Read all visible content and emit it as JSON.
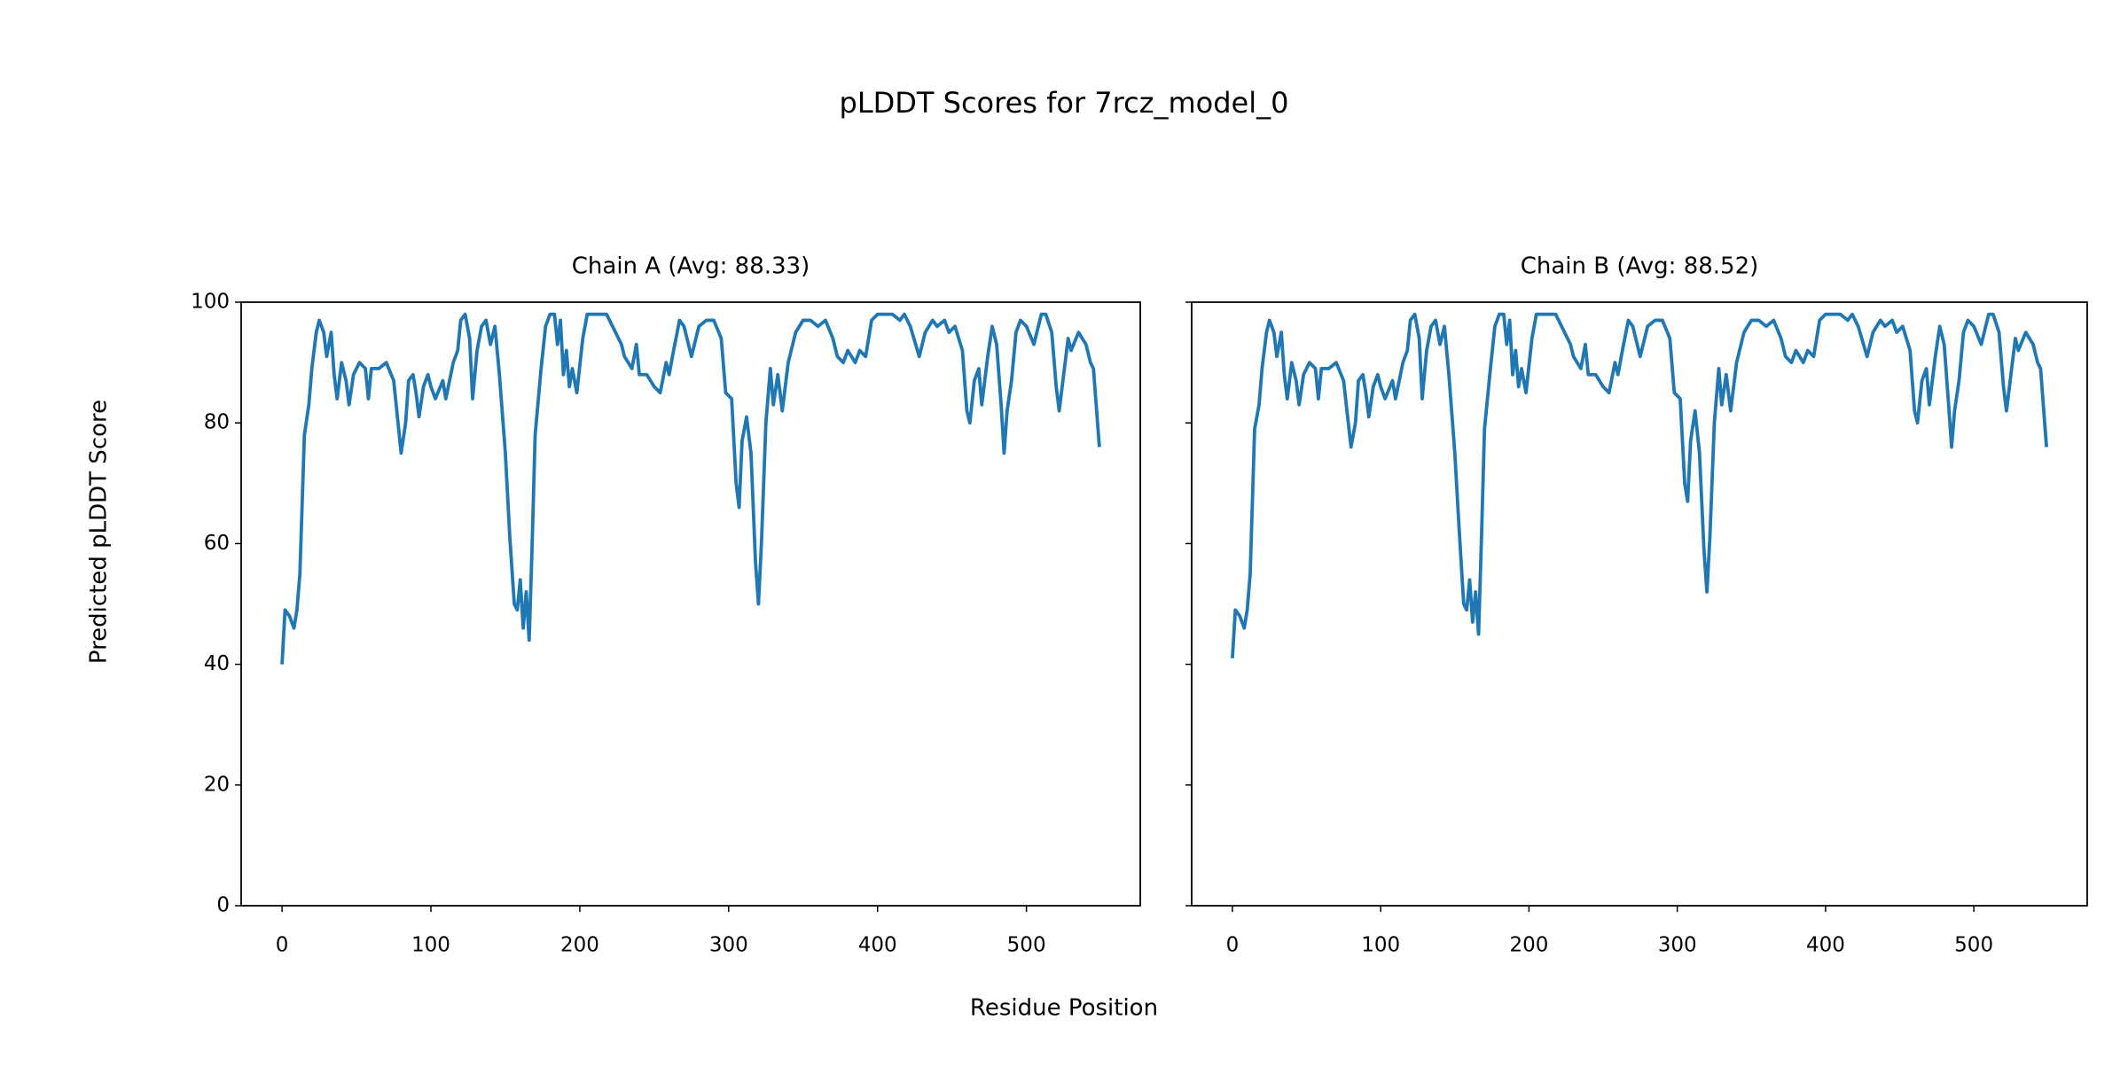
{
  "title": "pLDDT Scores for 7rcz_model_0",
  "x_label": "Residue Position",
  "y_label": "Predicted pLDDT Score",
  "chart_data": [
    {
      "type": "line",
      "title": "Chain A (Avg: 88.33)",
      "color": "#1f77b4",
      "xlim": [
        -27.45,
        576.45
      ],
      "ylim": [
        0,
        100
      ],
      "xticks": [
        0,
        100,
        200,
        300,
        400,
        500
      ],
      "yticks": [
        0,
        20,
        40,
        60,
        80,
        100
      ],
      "x": [
        0,
        2,
        5,
        8,
        10,
        12,
        15,
        18,
        20,
        23,
        25,
        28,
        30,
        33,
        35,
        37,
        40,
        43,
        45,
        48,
        52,
        56,
        58,
        60,
        65,
        70,
        75,
        80,
        83,
        85,
        88,
        90,
        92,
        95,
        98,
        100,
        103,
        108,
        110,
        115,
        118,
        120,
        123,
        126,
        128,
        131,
        134,
        137,
        140,
        143,
        146,
        150,
        153,
        156,
        158,
        160,
        162,
        164,
        166,
        168,
        170,
        174,
        177,
        180,
        183,
        185,
        187,
        189,
        191,
        193,
        195,
        198,
        202,
        205,
        208,
        212,
        218,
        222,
        226,
        228,
        230,
        235,
        238,
        240,
        245,
        250,
        254,
        258,
        260,
        263,
        267,
        270,
        275,
        280,
        285,
        290,
        295,
        298,
        302,
        305,
        307,
        309,
        312,
        315,
        318,
        320,
        322,
        325,
        328,
        330,
        333,
        336,
        340,
        345,
        350,
        355,
        360,
        365,
        370,
        373,
        377,
        380,
        385,
        388,
        392,
        396,
        400,
        405,
        410,
        415,
        418,
        422,
        428,
        432,
        437,
        440,
        445,
        448,
        452,
        457,
        460,
        462,
        465,
        468,
        470,
        474,
        477,
        480,
        483,
        485,
        487,
        490,
        493,
        496,
        500,
        505,
        510,
        513,
        517,
        520,
        522,
        525,
        528,
        530,
        535,
        540,
        543,
        545,
        549
      ],
      "values": [
        40,
        49,
        48,
        46,
        49,
        55,
        78,
        83,
        89,
        95,
        97,
        95,
        91,
        95,
        88,
        84,
        90,
        87,
        83,
        88,
        90,
        89,
        84,
        89,
        89,
        90,
        87,
        75,
        80,
        87,
        88,
        85,
        81,
        86,
        88,
        86,
        84,
        87,
        84,
        90,
        92,
        97,
        98,
        94,
        84,
        92,
        96,
        97,
        93,
        96,
        88,
        75,
        61,
        50,
        49,
        54,
        46,
        52,
        44,
        60,
        78,
        89,
        96,
        98,
        98,
        93,
        97,
        88,
        92,
        86,
        89,
        85,
        94,
        98,
        98,
        98,
        98,
        96,
        94,
        93,
        91,
        89,
        93,
        88,
        88,
        86,
        85,
        90,
        88,
        92,
        97,
        96,
        91,
        96,
        97,
        97,
        94,
        85,
        84,
        70,
        66,
        77,
        81,
        75,
        57,
        50,
        60,
        80,
        89,
        83,
        88,
        82,
        90,
        95,
        97,
        97,
        96,
        97,
        94,
        91,
        90,
        92,
        90,
        92,
        91,
        97,
        98,
        98,
        98,
        97,
        98,
        96,
        91,
        95,
        97,
        96,
        97,
        95,
        96,
        92,
        82,
        80,
        87,
        89,
        83,
        91,
        96,
        93,
        83,
        75,
        82,
        87,
        95,
        97,
        96,
        93,
        98,
        98,
        95,
        86,
        82,
        88,
        94,
        92,
        95,
        93,
        90,
        89,
        76
      ]
    },
    {
      "type": "line",
      "title": "Chain B (Avg: 88.52)",
      "color": "#1f77b4",
      "xlim": [
        -27.45,
        576.45
      ],
      "ylim": [
        0,
        100
      ],
      "xticks": [
        0,
        100,
        200,
        300,
        400,
        500
      ],
      "yticks": [
        0,
        20,
        40,
        60,
        80,
        100
      ],
      "x": [
        0,
        2,
        5,
        8,
        10,
        12,
        15,
        18,
        20,
        23,
        25,
        28,
        30,
        33,
        35,
        37,
        40,
        43,
        45,
        48,
        52,
        56,
        58,
        60,
        65,
        70,
        75,
        80,
        83,
        85,
        88,
        90,
        92,
        95,
        98,
        100,
        103,
        108,
        110,
        115,
        118,
        120,
        123,
        126,
        128,
        131,
        134,
        137,
        140,
        143,
        146,
        150,
        153,
        156,
        158,
        160,
        162,
        164,
        166,
        168,
        170,
        174,
        177,
        180,
        183,
        185,
        187,
        189,
        191,
        193,
        195,
        198,
        202,
        205,
        208,
        212,
        218,
        222,
        226,
        228,
        230,
        235,
        238,
        240,
        245,
        250,
        254,
        258,
        260,
        263,
        267,
        270,
        275,
        280,
        285,
        290,
        295,
        298,
        302,
        305,
        307,
        309,
        312,
        315,
        318,
        320,
        322,
        325,
        328,
        330,
        333,
        336,
        340,
        345,
        350,
        355,
        360,
        365,
        370,
        373,
        377,
        380,
        385,
        388,
        392,
        396,
        400,
        405,
        410,
        415,
        418,
        422,
        428,
        432,
        437,
        440,
        445,
        448,
        452,
        457,
        460,
        462,
        465,
        468,
        470,
        474,
        477,
        480,
        483,
        485,
        487,
        490,
        493,
        496,
        500,
        505,
        510,
        513,
        517,
        520,
        522,
        525,
        528,
        530,
        535,
        540,
        543,
        545,
        549
      ],
      "values": [
        41,
        49,
        48,
        46,
        49,
        55,
        79,
        83,
        89,
        95,
        97,
        95,
        91,
        95,
        88,
        84,
        90,
        87,
        83,
        88,
        90,
        89,
        84,
        89,
        89,
        90,
        87,
        76,
        80,
        87,
        88,
        85,
        81,
        86,
        88,
        86,
        84,
        87,
        84,
        90,
        92,
        97,
        98,
        94,
        84,
        92,
        96,
        97,
        93,
        96,
        88,
        75,
        62,
        50,
        49,
        54,
        47,
        52,
        45,
        61,
        79,
        89,
        96,
        98,
        98,
        93,
        97,
        88,
        92,
        86,
        89,
        85,
        94,
        98,
        98,
        98,
        98,
        96,
        94,
        93,
        91,
        89,
        93,
        88,
        88,
        86,
        85,
        90,
        88,
        92,
        97,
        96,
        91,
        96,
        97,
        97,
        94,
        85,
        84,
        70,
        67,
        77,
        82,
        75,
        59,
        52,
        61,
        80,
        89,
        83,
        88,
        82,
        90,
        95,
        97,
        97,
        96,
        97,
        94,
        91,
        90,
        92,
        90,
        92,
        91,
        97,
        98,
        98,
        98,
        97,
        98,
        96,
        91,
        95,
        97,
        96,
        97,
        95,
        96,
        92,
        82,
        80,
        87,
        89,
        83,
        91,
        96,
        93,
        83,
        76,
        82,
        87,
        95,
        97,
        96,
        93,
        98,
        98,
        95,
        86,
        82,
        88,
        94,
        92,
        95,
        93,
        90,
        89,
        76
      ]
    }
  ]
}
